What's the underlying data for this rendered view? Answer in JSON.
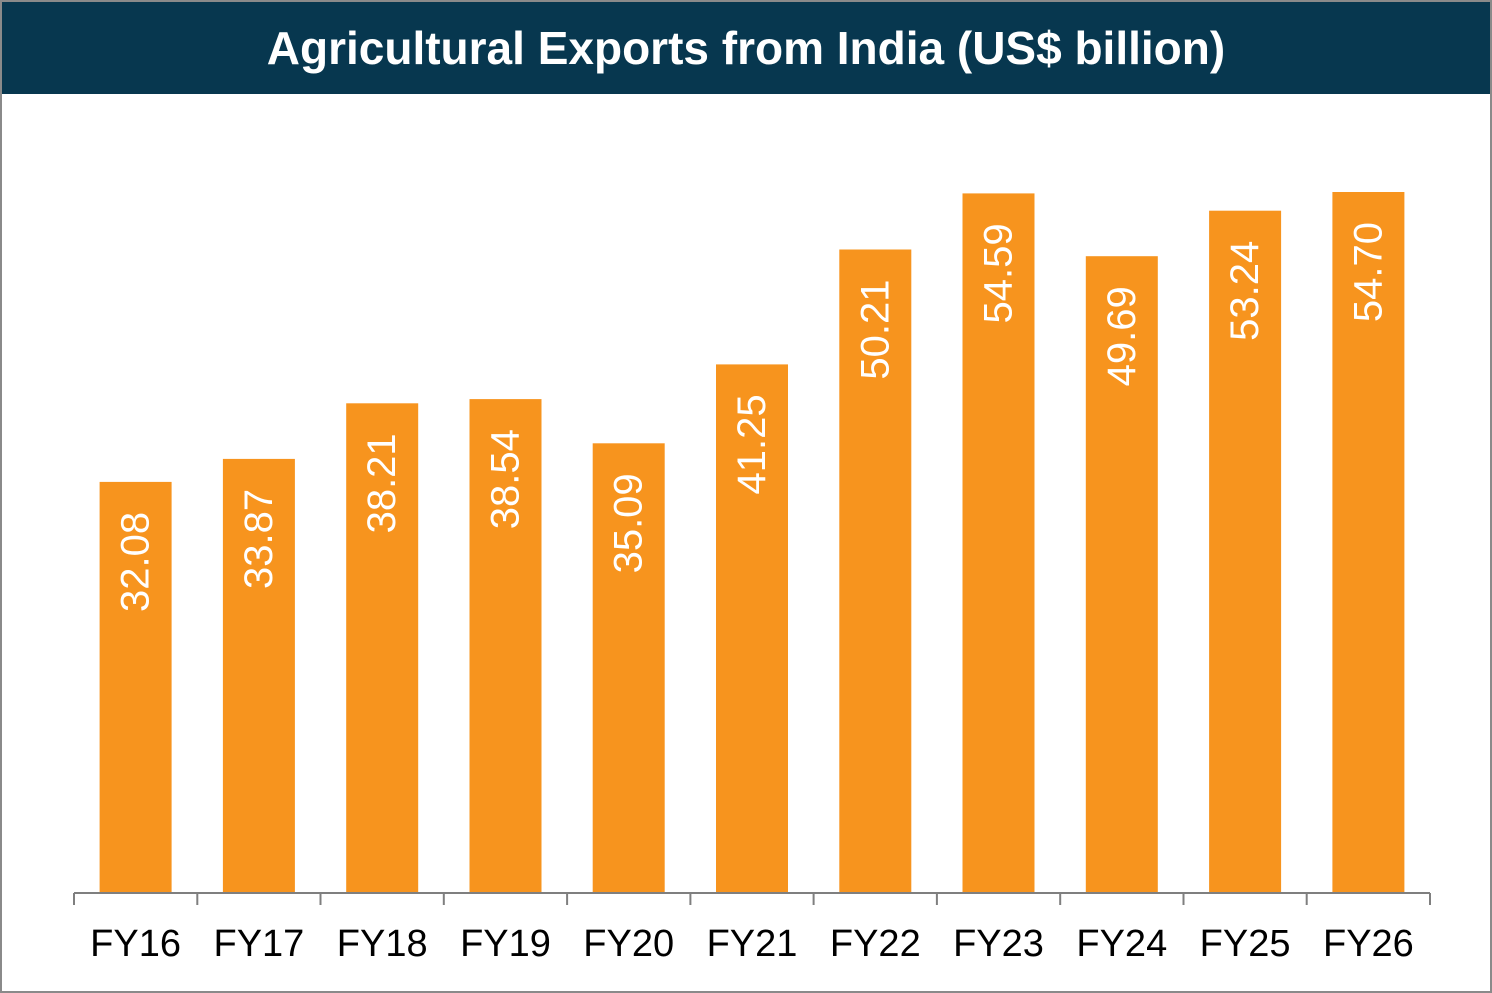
{
  "colors": {
    "title_bg": "#07374F",
    "bar": "#F7941E",
    "axis": "#7f7f7f"
  },
  "chart_data": {
    "type": "bar",
    "title": "Agricultural Exports from India (US$ billion)",
    "categories": [
      "FY16",
      "FY17",
      "FY18",
      "FY19",
      "FY20",
      "FY21",
      "FY22",
      "FY23",
      "FY24",
      "FY25",
      "FY26"
    ],
    "values": [
      32.08,
      33.87,
      38.21,
      38.54,
      35.09,
      41.25,
      50.21,
      54.59,
      49.69,
      53.24,
      54.7
    ],
    "value_labels": [
      "32.08",
      "33.87",
      "38.21",
      "38.54",
      "35.09",
      "41.25",
      "50.21",
      "54.59",
      "49.69",
      "53.24",
      "54.70"
    ],
    "xlabel": "",
    "ylabel": "",
    "ylim": [
      0,
      54.7
    ],
    "data_labels": "inside-rotated",
    "grid": false,
    "legend": "none"
  }
}
